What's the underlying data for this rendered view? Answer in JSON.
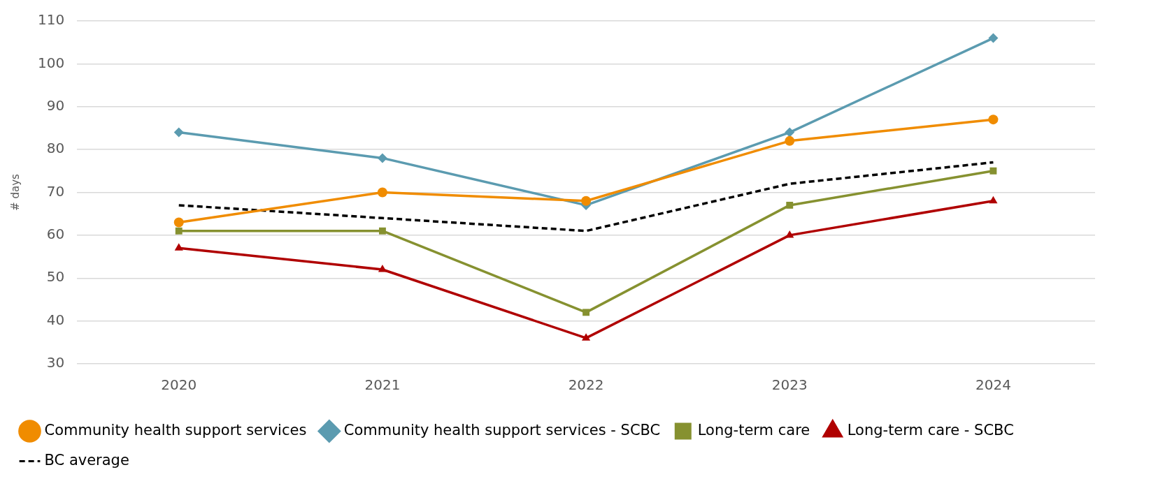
{
  "chart_data": {
    "type": "line",
    "ylabel": "# days",
    "categories": [
      "2020",
      "2021",
      "2022",
      "2023",
      "2024"
    ],
    "ylim": [
      30,
      110
    ],
    "yticks": [
      30,
      40,
      50,
      60,
      70,
      80,
      90,
      100,
      110
    ],
    "grid": "y",
    "legend": "bottom",
    "series": [
      {
        "name": "Community health support services",
        "color": "#f08c00",
        "marker": "circle",
        "line_style": "solid",
        "values": [
          63,
          70,
          68,
          82,
          87
        ]
      },
      {
        "name": "Community health support services - SCBC",
        "color": "#5b9bb0",
        "marker": "diamond",
        "line_style": "solid",
        "values": [
          84,
          78,
          67,
          84,
          106
        ]
      },
      {
        "name": "Long-term care",
        "color": "#869130",
        "marker": "square",
        "line_style": "solid",
        "values": [
          61,
          61,
          42,
          67,
          75
        ]
      },
      {
        "name": "Long-term care - SCBC",
        "color": "#b00000",
        "marker": "triangle",
        "line_style": "solid",
        "values": [
          57,
          52,
          36,
          60,
          68
        ]
      },
      {
        "name": "BC average",
        "color": "#000000",
        "marker": "none",
        "line_style": "dashed",
        "values": [
          67,
          64,
          61,
          72,
          77
        ]
      }
    ]
  }
}
